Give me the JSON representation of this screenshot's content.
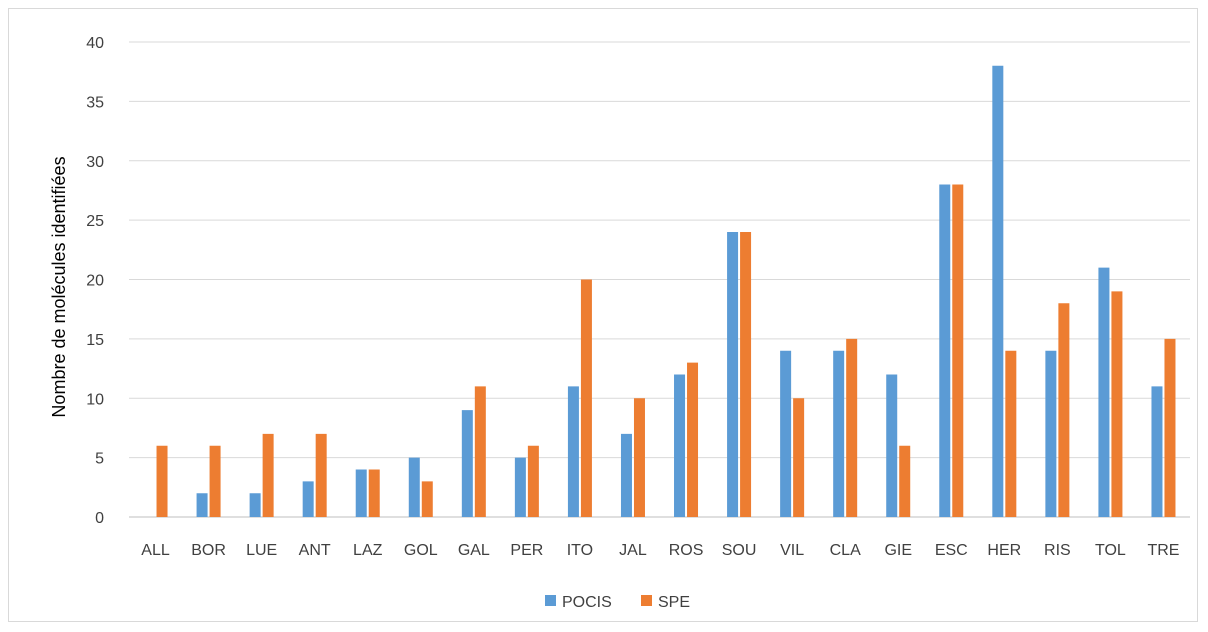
{
  "chart_data": {
    "type": "bar",
    "title": "",
    "xlabel": "",
    "ylabel": "Nombre de molécules identifiées",
    "ylim": [
      0,
      40
    ],
    "yticks": [
      0,
      5,
      10,
      15,
      20,
      25,
      30,
      35,
      40
    ],
    "grid": true,
    "legend_position": "bottom",
    "categories": [
      "ALL",
      "BOR",
      "LUE",
      "ANT",
      "LAZ",
      "GOL",
      "GAL",
      "PER",
      "ITO",
      "JAL",
      "ROS",
      "SOU",
      "VIL",
      "CLA",
      "GIE",
      "ESC",
      "HER",
      "RIS",
      "TOL",
      "TRE"
    ],
    "series": [
      {
        "name": "POCIS",
        "color": "#5b9bd5",
        "values": [
          0,
          2,
          2,
          3,
          4,
          5,
          9,
          5,
          11,
          7,
          12,
          24,
          14,
          14,
          12,
          28,
          38,
          14,
          21,
          11
        ]
      },
      {
        "name": "SPE",
        "color": "#ed7d31",
        "values": [
          6,
          6,
          7,
          7,
          4,
          3,
          11,
          6,
          20,
          10,
          13,
          24,
          10,
          15,
          6,
          28,
          14,
          18,
          19,
          15
        ]
      }
    ]
  }
}
